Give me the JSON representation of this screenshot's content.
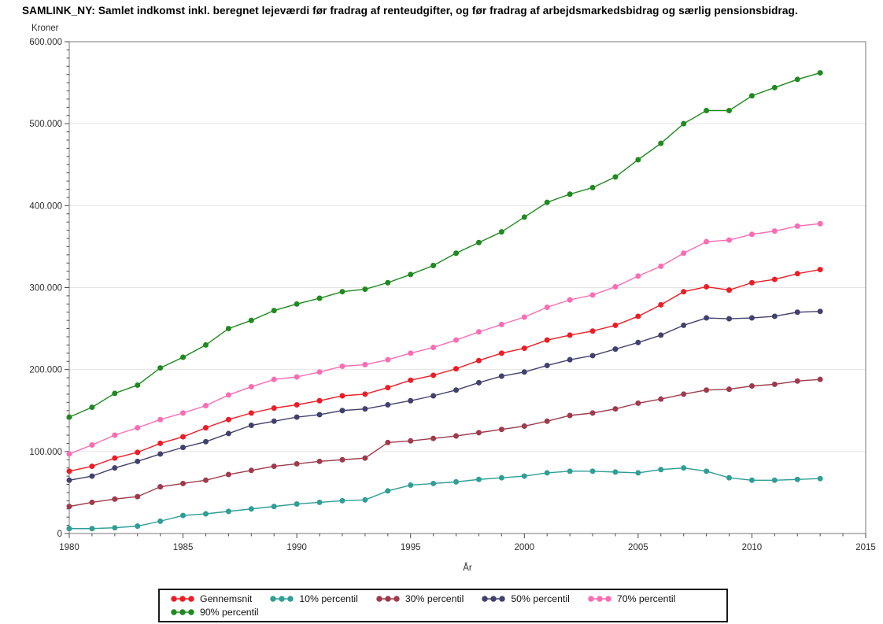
{
  "chart_data": {
    "type": "line",
    "title": "SAMLINK_NY:  Samlet indkomst inkl. beregnet lejeværdi før fradrag af renteudgifter, og før fradrag af arbejdsmarkedsbidrag og særlig pensionsbidrag.",
    "xlabel": "År",
    "ylabel": "Kroner",
    "xlim": [
      1980,
      2015
    ],
    "ylim": [
      0,
      600000
    ],
    "x_major_ticks": [
      1980,
      1985,
      1990,
      1995,
      2000,
      2005,
      2010,
      2015
    ],
    "x_minor_step": 1,
    "y_major_ticks": [
      {
        "value": 0,
        "label": "0"
      },
      {
        "value": 100000,
        "label": "100.000"
      },
      {
        "value": 200000,
        "label": "200.000"
      },
      {
        "value": 300000,
        "label": "300.000"
      },
      {
        "value": 400000,
        "label": "400.000"
      },
      {
        "value": 500000,
        "label": "500.000"
      },
      {
        "value": 600000,
        "label": "600.000"
      }
    ],
    "y_minor_step": 10000,
    "grid": "horizontal",
    "legend_position": "bottom",
    "legend_rows": [
      [
        0,
        1,
        2,
        3,
        4
      ],
      [
        5
      ]
    ],
    "x": [
      1980,
      1981,
      1982,
      1983,
      1984,
      1985,
      1986,
      1987,
      1988,
      1989,
      1990,
      1991,
      1992,
      1993,
      1994,
      1995,
      1996,
      1997,
      1998,
      1999,
      2000,
      2001,
      2002,
      2003,
      2004,
      2005,
      2006,
      2007,
      2008,
      2009,
      2010,
      2011,
      2012,
      2013
    ],
    "series": [
      {
        "name": "Gennemsnit",
        "color": "#EE1C25",
        "values": [
          76000,
          82000,
          92000,
          99000,
          110000,
          118000,
          129000,
          139000,
          147000,
          153000,
          157000,
          162000,
          168000,
          170000,
          178000,
          187000,
          193000,
          201000,
          211000,
          220000,
          226000,
          236000,
          242000,
          247000,
          254000,
          265000,
          279000,
          295000,
          301000,
          297000,
          306000,
          310000,
          317000,
          322000
        ]
      },
      {
        "name": "10% percentil",
        "color": "#2E9E96",
        "values": [
          6000,
          6000,
          7000,
          9000,
          15000,
          22000,
          24000,
          27000,
          30000,
          33000,
          36000,
          38000,
          40000,
          41000,
          52000,
          59000,
          61000,
          63000,
          66000,
          68000,
          70000,
          74000,
          76000,
          76000,
          75000,
          74000,
          78000,
          80000,
          76000,
          68000,
          65000,
          65000,
          66000,
          67000
        ]
      },
      {
        "name": "30% percentil",
        "color": "#9E3A4C",
        "values": [
          33000,
          38000,
          42000,
          45000,
          57000,
          61000,
          65000,
          72000,
          77000,
          82000,
          85000,
          88000,
          90000,
          92000,
          111000,
          113000,
          116000,
          119000,
          123000,
          127000,
          131000,
          137000,
          144000,
          147000,
          152000,
          159000,
          164000,
          170000,
          175000,
          176000,
          180000,
          182000,
          186000,
          188000
        ]
      },
      {
        "name": "50% percentil",
        "color": "#41416E",
        "values": [
          65000,
          70000,
          80000,
          88000,
          97000,
          105000,
          112000,
          122000,
          132000,
          137000,
          142000,
          145000,
          150000,
          152000,
          157000,
          162000,
          168000,
          175000,
          184000,
          192000,
          197000,
          205000,
          212000,
          217000,
          225000,
          233000,
          242000,
          254000,
          263000,
          262000,
          263000,
          265000,
          270000,
          271000
        ]
      },
      {
        "name": "70% percentil",
        "color": "#FB6CB2",
        "values": [
          97000,
          108000,
          120000,
          129000,
          139000,
          147000,
          156000,
          169000,
          179000,
          188000,
          191000,
          197000,
          204000,
          206000,
          212000,
          220000,
          227000,
          236000,
          246000,
          255000,
          264000,
          276000,
          285000,
          291000,
          301000,
          314000,
          326000,
          342000,
          356000,
          358000,
          365000,
          369000,
          375000,
          378000
        ]
      },
      {
        "name": "90% percentil",
        "color": "#1F8A1F",
        "values": [
          142000,
          154000,
          171000,
          181000,
          202000,
          215000,
          230000,
          250000,
          260000,
          272000,
          280000,
          287000,
          295000,
          298000,
          306000,
          316000,
          327000,
          342000,
          355000,
          368000,
          386000,
          404000,
          414000,
          422000,
          435000,
          456000,
          476000,
          500000,
          516000,
          516000,
          534000,
          544000,
          554000,
          562000
        ]
      }
    ]
  },
  "style": {
    "grid_color": "#E4E4E4",
    "frame_color": "#8E8E8E",
    "tick_color": "#4A4A4A",
    "tick_label_color": "#2E2E2E",
    "background": "#FFFFFF"
  }
}
